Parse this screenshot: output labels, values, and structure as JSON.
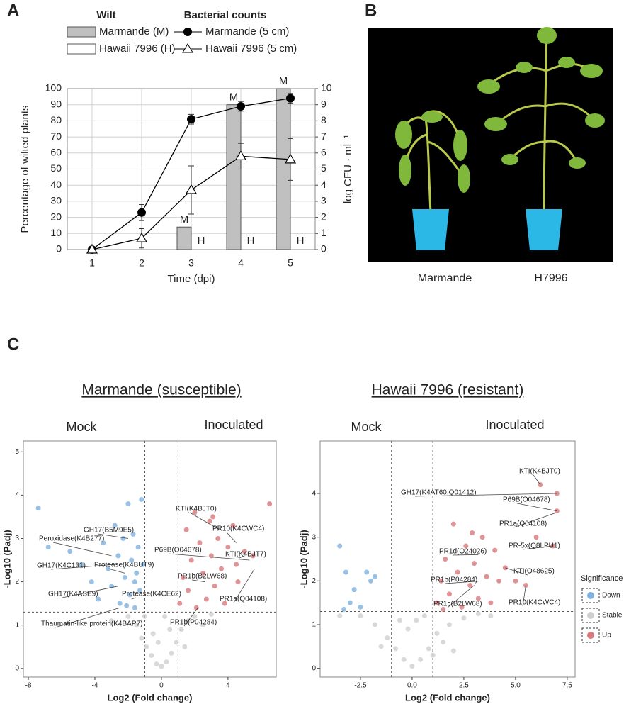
{
  "panel_labels": [
    "A",
    "B",
    "C"
  ],
  "photo": {
    "captions": [
      "Marmande",
      "H7996"
    ]
  },
  "section_c": {
    "titles": [
      "Marmande (susceptible)",
      "Hawaii 7996 (resistant)"
    ]
  },
  "chart_data": [
    {
      "type": "combo",
      "legend_titles": [
        "Wilt",
        "Bacterial counts"
      ],
      "categories": [
        "1",
        "2",
        "3",
        "4",
        "5"
      ],
      "xlabel": "Time (dpi)",
      "ylabel": "Percentage of wilted plants",
      "y2label": "log CFU · ml⁻¹",
      "ylim": [
        0,
        100
      ],
      "yticks": [
        0,
        10,
        20,
        30,
        40,
        50,
        60,
        70,
        80,
        90,
        100
      ],
      "y2lim": [
        0,
        10
      ],
      "y2ticks": [
        0,
        1,
        2,
        3,
        4,
        5,
        6,
        7,
        8,
        9,
        10
      ],
      "grid": true,
      "series": [
        {
          "name": "Marmande (M)",
          "kind": "bar",
          "color": "#c0c0c0",
          "values": [
            0,
            0,
            14,
            90,
            100
          ]
        },
        {
          "name": "Hawaii 7996 (H)",
          "kind": "bar",
          "color": "#ffffff",
          "values": [
            0,
            0,
            0,
            0,
            0
          ]
        },
        {
          "name": "Marmande (5 cm)",
          "kind": "line",
          "axis": "y2",
          "marker": "circle",
          "color": "#000000",
          "values": [
            0,
            2.3,
            8.1,
            8.9,
            9.4
          ],
          "errors": [
            0,
            0.5,
            0.3,
            0.3,
            0.3
          ]
        },
        {
          "name": "Hawaii 7996 (5 cm)",
          "kind": "line",
          "axis": "y2",
          "marker": "triangle",
          "color": "#000000",
          "values": [
            0,
            0.7,
            3.7,
            5.8,
            5.6
          ],
          "errors": [
            0,
            0.6,
            1.5,
            0.8,
            1.3
          ]
        }
      ],
      "annotations": [
        {
          "text": "M",
          "x": "3",
          "y": 14
        },
        {
          "text": "M",
          "x": "4",
          "y": 90
        },
        {
          "text": "M",
          "x": "5",
          "y": 100
        },
        {
          "text": "H",
          "x": "3",
          "y": 0
        },
        {
          "text": "H",
          "x": "4",
          "y": 0
        },
        {
          "text": "H",
          "x": "5",
          "y": 0
        }
      ]
    },
    {
      "type": "volcano",
      "left_label": "Mock",
      "right_label": "Inoculated",
      "xlabel": "Log2 (Fold change)",
      "ylabel": "-Log10 (Padj)",
      "xlim": [
        -8.3,
        6.9
      ],
      "xticks": [
        -8,
        -4,
        0,
        4
      ],
      "ylim": [
        -0.2,
        5.25
      ],
      "yticks": [
        0,
        1,
        2,
        3,
        4,
        5
      ],
      "thresholds": {
        "x": [
          -1,
          1
        ],
        "y": 1.3
      },
      "series": [
        {
          "name": "Down",
          "color": "#7fb2e0",
          "x": [
            -7.4,
            -6.8,
            -5.5,
            -4.8,
            -4.2,
            -3.8,
            -3.5,
            -3.2,
            -3.0,
            -2.8,
            -2.6,
            -2.5,
            -2.3,
            -2.2,
            -2.0,
            -1.9,
            -1.8,
            -1.7,
            -1.6,
            -1.5,
            -1.4,
            -1.3,
            -1.2,
            -1.1,
            -1.6,
            -2.1
          ],
          "y": [
            3.7,
            2.8,
            2.7,
            2.4,
            2.0,
            1.6,
            2.9,
            2.3,
            1.9,
            3.3,
            2.6,
            1.5,
            3.0,
            2.1,
            3.8,
            1.7,
            2.5,
            3.1,
            1.4,
            2.2,
            2.8,
            1.8,
            3.9,
            2.4,
            2.0,
            1.45
          ]
        },
        {
          "name": "Stable",
          "color": "#cfcfcf",
          "x": [
            -1.5,
            -1.2,
            -0.9,
            -0.6,
            -0.3,
            0,
            0.3,
            0.6,
            0.9,
            1.2,
            1.6,
            2.0,
            -2.0,
            -0.5,
            0.5,
            1.4,
            -1.0,
            2.5,
            3.0,
            -3.0,
            0.2,
            -0.2
          ],
          "y": [
            1.0,
            0.7,
            0.5,
            0.3,
            0.1,
            0.05,
            0.15,
            0.35,
            0.6,
            0.9,
            1.1,
            1.2,
            1.2,
            0.8,
            0.9,
            0.5,
            1.2,
            1.0,
            1.25,
            1.1,
            1.2,
            0.6
          ]
        },
        {
          "name": "Up",
          "color": "#d9777a",
          "x": [
            1.1,
            1.3,
            1.5,
            1.6,
            1.8,
            2.0,
            2.1,
            2.3,
            2.5,
            2.7,
            2.9,
            3.0,
            3.2,
            3.4,
            3.6,
            3.8,
            4.0,
            4.3,
            4.6,
            5.0,
            5.5,
            6.5,
            4.5,
            3.1
          ],
          "y": [
            1.5,
            2.1,
            3.2,
            1.8,
            2.5,
            3.6,
            1.4,
            2.9,
            2.2,
            1.6,
            3.4,
            2.6,
            1.9,
            3.0,
            2.3,
            1.5,
            2.8,
            3.3,
            2.0,
            2.7,
            2.6,
            3.8,
            2.4,
            3.5
          ]
        }
      ],
      "annotations": [
        {
          "text": "KTI(K4BJT0)",
          "x": 3.5,
          "y": 3.2
        },
        {
          "text": "PR10(K4CWC4)",
          "x": 4.5,
          "y": 2.9
        },
        {
          "text": "KTI(K4BJT7)",
          "x": 5.0,
          "y": 2.6
        },
        {
          "text": "P69B(O04678)",
          "x": 5.3,
          "y": 2.5
        },
        {
          "text": "PR1b(B2LW68)",
          "x": 2.6,
          "y": 2.0
        },
        {
          "text": "PR1a(Q04108)",
          "x": 5.6,
          "y": 2.3
        },
        {
          "text": "PR1b(P04284)",
          "x": 2.2,
          "y": 1.4
        },
        {
          "text": "Peroxidase(K4B277)",
          "x": -3.0,
          "y": 2.6
        },
        {
          "text": "GH17(B5M9E5)",
          "x": -2.0,
          "y": 3.0
        },
        {
          "text": "GH17(K4C131)",
          "x": -2.8,
          "y": 2.4
        },
        {
          "text": "Protease(K4BUT9)",
          "x": -2.2,
          "y": 2.2
        },
        {
          "text": "GH17(K4ASE9)",
          "x": -2.6,
          "y": 1.9
        },
        {
          "text": "Protease(K4CE62)",
          "x": -1.8,
          "y": 1.6
        },
        {
          "text": "Thaumatin-like protein(K4BAP7)",
          "x": -2.5,
          "y": 1.4
        }
      ]
    },
    {
      "type": "volcano",
      "left_label": "Mock",
      "right_label": "Inoculated",
      "xlabel": "Log2 (Fold change)",
      "ylabel": "-Log10 (Padj)",
      "xlim": [
        -4.45,
        7.88
      ],
      "xticks": [
        -2.5,
        {
          "value": 0,
          "label": "0.0"
        },
        2.5,
        {
          "value": 5,
          "label": "5.0"
        },
        7.5
      ],
      "ylim": [
        -0.2,
        5.2
      ],
      "yticks": [
        0,
        1,
        2,
        3,
        4
      ],
      "thresholds": {
        "x": [
          -1,
          1
        ],
        "y": 1.3
      },
      "legend": {
        "title": "Significance"
      },
      "series": [
        {
          "name": "Down",
          "color": "#7fb2e0",
          "x": [
            -3.5,
            -3.2,
            -2.2,
            -2.0,
            -1.8,
            -2.8,
            -3.0,
            -2.5,
            -3.3
          ],
          "y": [
            2.8,
            2.2,
            2.2,
            2.0,
            2.1,
            1.8,
            1.5,
            1.4,
            1.35
          ]
        },
        {
          "name": "Stable",
          "color": "#cfcfcf",
          "x": [
            -2.5,
            -1.8,
            -1.2,
            -0.8,
            -0.4,
            0,
            0.4,
            0.8,
            1.2,
            1.8,
            2.5,
            3.2,
            -3.5,
            -1.5,
            -0.2,
            0.2,
            1.5,
            2.0,
            -0.6,
            0.6,
            3.8,
            1.0
          ],
          "y": [
            1.2,
            1.0,
            0.7,
            0.45,
            0.2,
            0.05,
            0.2,
            0.45,
            0.8,
            1.0,
            1.15,
            1.25,
            1.2,
            0.5,
            0.9,
            1.1,
            0.6,
            0.4,
            1.1,
            1.2,
            1.2,
            0.3
          ]
        },
        {
          "name": "Up",
          "color": "#d9777a",
          "x": [
            1.2,
            1.4,
            1.6,
            1.8,
            2.0,
            2.2,
            2.4,
            2.6,
            2.8,
            3.0,
            3.2,
            3.4,
            3.6,
            3.8,
            4.0,
            4.2,
            4.5,
            5.0,
            5.5,
            6.2,
            7.0,
            7.0,
            6.8,
            6.0,
            1.5,
            2.9
          ],
          "y": [
            1.5,
            2.0,
            2.5,
            1.7,
            3.3,
            2.2,
            1.4,
            2.8,
            1.9,
            2.4,
            1.6,
            3.0,
            2.1,
            1.5,
            2.7,
            2.0,
            2.3,
            2.0,
            1.9,
            4.2,
            4.0,
            3.6,
            2.8,
            3.0,
            1.35,
            3.1
          ]
        }
      ],
      "annotations": [
        {
          "text": "KTI(K4BJT0)",
          "x": 6.2,
          "y": 4.2
        },
        {
          "text": "GH17(K4AT60;Q01412)",
          "x": 7.0,
          "y": 4.0
        },
        {
          "text": "P69B(O04678)",
          "x": 7.0,
          "y": 3.6
        },
        {
          "text": "PR1a(Q04108)",
          "x": 6.9,
          "y": 3.55
        },
        {
          "text": "PR-5x(Q8LPU1)",
          "x": 6.8,
          "y": 2.8
        },
        {
          "text": "PR1d(O24026)",
          "x": 3.2,
          "y": 2.6
        },
        {
          "text": "KTI(O48625)",
          "x": 4.5,
          "y": 2.3
        },
        {
          "text": "PR1b(P04284)",
          "x": 3.4,
          "y": 2.0
        },
        {
          "text": "PR1c(B2LW68)",
          "x": 3.0,
          "y": 1.9
        },
        {
          "text": "PR10(K4CWC4)",
          "x": 5.5,
          "y": 1.9
        }
      ]
    }
  ]
}
